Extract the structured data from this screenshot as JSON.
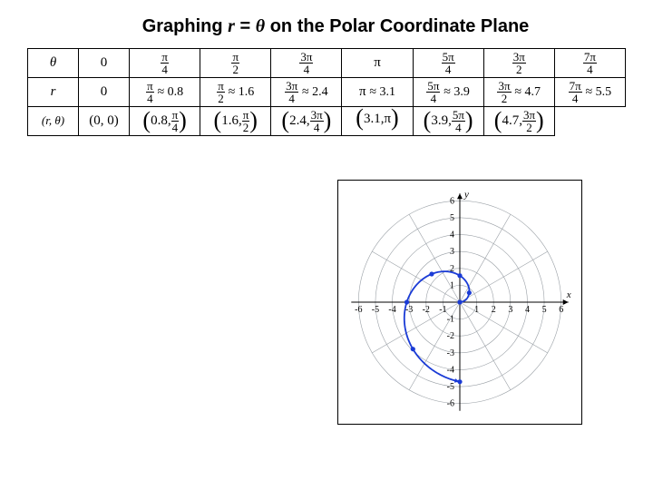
{
  "title_pre": "Graphing ",
  "title_eq_r": "r",
  "title_eq_mid": " = ",
  "title_eq_theta": "θ",
  "title_post": " on the Polar Coordinate Plane",
  "row_headers": {
    "theta": "θ",
    "r": "r",
    "pair": "(r, θ)"
  },
  "cols": [
    {
      "theta_num": "0",
      "theta_den": "",
      "r_num": "0",
      "r_den": "",
      "r_approx": "",
      "pair_r": "(0, 0)",
      "pair_num": "",
      "pair_den": ""
    },
    {
      "theta_num": "π",
      "theta_den": "4",
      "r_num": "π",
      "r_den": "4",
      "r_approx": "≈ 0.8",
      "pair_r": "0.8",
      "pair_num": "π",
      "pair_den": "4"
    },
    {
      "theta_num": "π",
      "theta_den": "2",
      "r_num": "π",
      "r_den": "2",
      "r_approx": "≈ 1.6",
      "pair_r": "1.6",
      "pair_num": "π",
      "pair_den": "2"
    },
    {
      "theta_num": "3π",
      "theta_den": "4",
      "r_num": "3π",
      "r_den": "4",
      "r_approx": "≈ 2.4",
      "pair_r": "2.4",
      "pair_num": "3π",
      "pair_den": "4"
    },
    {
      "theta_num": "π",
      "theta_den": "",
      "r_num": "π",
      "r_den": "",
      "r_approx": "≈ 3.1",
      "pair_r": "3.1",
      "pair_num": "π",
      "pair_den": ""
    },
    {
      "theta_num": "5π",
      "theta_den": "4",
      "r_num": "5π",
      "r_den": "4",
      "r_approx": "≈ 3.9",
      "pair_r": "3.9",
      "pair_num": "5π",
      "pair_den": "4"
    },
    {
      "theta_num": "3π",
      "theta_den": "2",
      "r_num": "3π",
      "r_den": "2",
      "r_approx": "≈ 4.7",
      "pair_r": "4.7",
      "pair_num": "3π",
      "pair_den": "2"
    },
    {
      "theta_num": "7π",
      "theta_den": "4",
      "r_num": "7π",
      "r_den": "4",
      "r_approx": "≈ 5.5",
      "pair_r": "",
      "pair_num": "",
      "pair_den": ""
    }
  ],
  "chart": {
    "size": 270,
    "bg": "#ffffff",
    "border": "#000000",
    "grid": "#9aa0a6",
    "axis": "#000000",
    "tick_color": "#000000",
    "curve": "#1a3bd6",
    "point": "#1a3bd6",
    "arrow": "#1a3bd6",
    "range": 6.5,
    "rings": [
      1,
      2,
      3,
      4,
      5,
      6
    ],
    "radials": 12,
    "ticks_x_neg": [
      "-6",
      "-5",
      "-4",
      "-3",
      "-2",
      "-1"
    ],
    "ticks_x_pos": [
      "1",
      "2",
      "3",
      "4",
      "5",
      "6"
    ],
    "ticks_y_neg": [
      "-1",
      "-2",
      "-3",
      "-4",
      "-5",
      "-6"
    ],
    "ticks_y_pos": [
      "1",
      "2",
      "3",
      "4",
      "5",
      "6"
    ],
    "x_label": "x",
    "y_label": "y",
    "theta_max": 4.71,
    "arrow_theta": 4.71,
    "tick_fontsize": 10
  }
}
